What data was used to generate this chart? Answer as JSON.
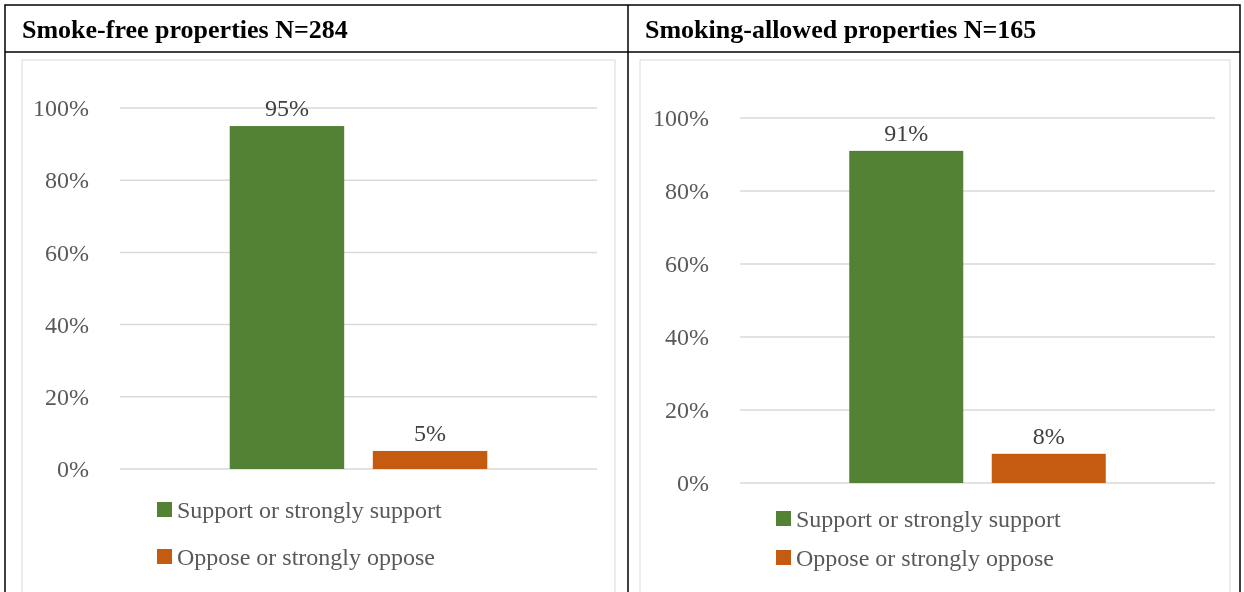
{
  "chart_data": [
    {
      "type": "bar",
      "title": "Smoke-free properties N=284",
      "categories": [
        null
      ],
      "series": [
        {
          "name": "Support or strongly support",
          "color": "#548235",
          "values": [
            95
          ],
          "value_labels": [
            "95%"
          ]
        },
        {
          "name": "Oppose or strongly oppose",
          "color": "#c55a11",
          "values": [
            5
          ],
          "value_labels": [
            "5%"
          ]
        }
      ],
      "ylim": [
        0,
        100
      ],
      "yticks": [
        {
          "value": 0,
          "label": "0%"
        },
        {
          "value": 20,
          "label": "20%"
        },
        {
          "value": 40,
          "label": "40%"
        },
        {
          "value": 60,
          "label": "60%"
        },
        {
          "value": 80,
          "label": "80%"
        },
        {
          "value": 100,
          "label": "100%"
        }
      ],
      "grid": "y",
      "legend": "bottom",
      "tick_labels": "y"
    },
    {
      "type": "bar",
      "title": "Smoking-allowed properties N=165",
      "categories": [
        null
      ],
      "series": [
        {
          "name": "Support or strongly support",
          "color": "#548235",
          "values": [
            91
          ],
          "value_labels": [
            "91%"
          ]
        },
        {
          "name": "Oppose or strongly oppose",
          "color": "#c55a11",
          "values": [
            8
          ],
          "value_labels": [
            "8%"
          ]
        }
      ],
      "ylim": [
        0,
        100
      ],
      "yticks": [
        {
          "value": 0,
          "label": "0%"
        },
        {
          "value": 20,
          "label": "20%"
        },
        {
          "value": 40,
          "label": "40%"
        },
        {
          "value": 60,
          "label": "60%"
        },
        {
          "value": 80,
          "label": "80%"
        },
        {
          "value": 100,
          "label": "100%"
        }
      ],
      "grid": "y",
      "legend": "bottom",
      "tick_labels": "y"
    }
  ]
}
